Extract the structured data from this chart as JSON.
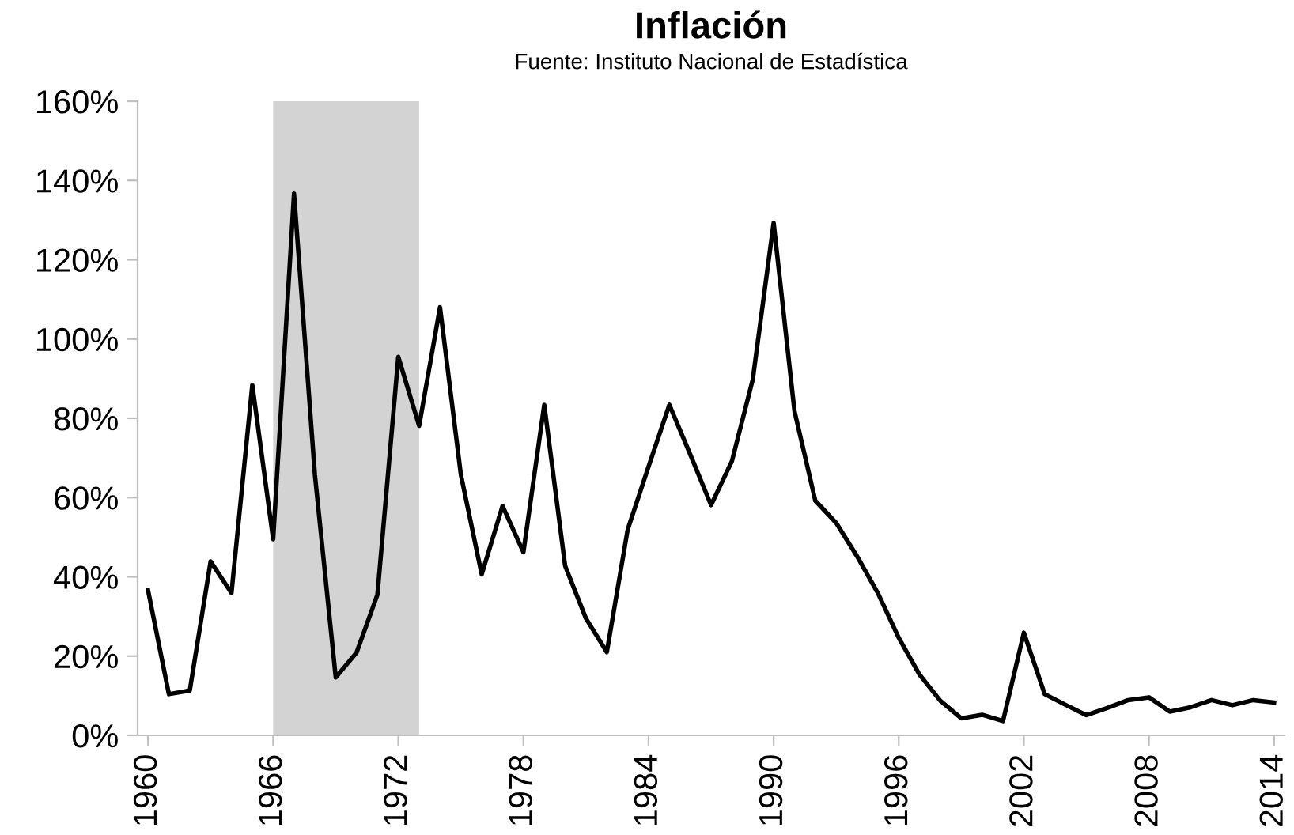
{
  "chart_data": {
    "type": "line",
    "title": "Inflación",
    "subtitle": "Fuente: Instituto Nacional de Estadística",
    "x": [
      1960,
      1961,
      1962,
      1963,
      1964,
      1965,
      1966,
      1967,
      1968,
      1969,
      1970,
      1971,
      1972,
      1973,
      1974,
      1975,
      1976,
      1977,
      1978,
      1979,
      1980,
      1981,
      1982,
      1983,
      1984,
      1985,
      1986,
      1987,
      1988,
      1989,
      1990,
      1991,
      1992,
      1993,
      1994,
      1995,
      1996,
      1997,
      1998,
      1999,
      2000,
      2001,
      2002,
      2003,
      2004,
      2005,
      2006,
      2007,
      2008,
      2009,
      2010,
      2011,
      2012,
      2013,
      2014
    ],
    "series": [
      {
        "color": "#000000",
        "values": [
          36.6,
          10.4,
          11.3,
          43.9,
          35.9,
          88.4,
          49.5,
          136.7,
          65.8,
          14.6,
          20.9,
          35.5,
          95.5,
          78.1,
          108,
          65.8,
          40.6,
          57.9,
          46.2,
          83.4,
          42.8,
          29.5,
          21,
          51.9,
          67.8,
          83.4,
          70.9,
          58.1,
          69.2,
          89.8,
          129.3,
          81.8,
          59.2,
          53.6,
          45.2,
          35.9,
          24.6,
          15.3,
          8.7,
          4.3,
          5.2,
          3.6,
          25.9,
          10.4,
          7.7,
          5.1,
          6.9,
          8.9,
          9.6,
          6.0,
          7.1,
          8.9,
          7.6,
          8.9,
          8.3
        ]
      }
    ],
    "xlim": [
      1959.5,
      2014.5
    ],
    "xticks": [
      1960,
      1966,
      1972,
      1978,
      1984,
      1990,
      1996,
      2002,
      2008,
      2014
    ],
    "ylim": [
      0,
      160
    ],
    "yticks": [
      {
        "value": 0,
        "label": "0%"
      },
      {
        "value": 20,
        "label": "20%"
      },
      {
        "value": 40,
        "label": "40%"
      },
      {
        "value": 60,
        "label": "60%"
      },
      {
        "value": 80,
        "label": "80%"
      },
      {
        "value": 100,
        "label": "100%"
      },
      {
        "value": 120,
        "label": "120%"
      },
      {
        "value": 140,
        "label": "140%"
      },
      {
        "value": 160,
        "label": "160%"
      }
    ],
    "bands": [
      {
        "axis": "x",
        "from": 1966,
        "to": 1973,
        "color": "#d3d3d3"
      }
    ],
    "grid": false,
    "legend": false,
    "marker": "none",
    "line_style": "solid"
  }
}
